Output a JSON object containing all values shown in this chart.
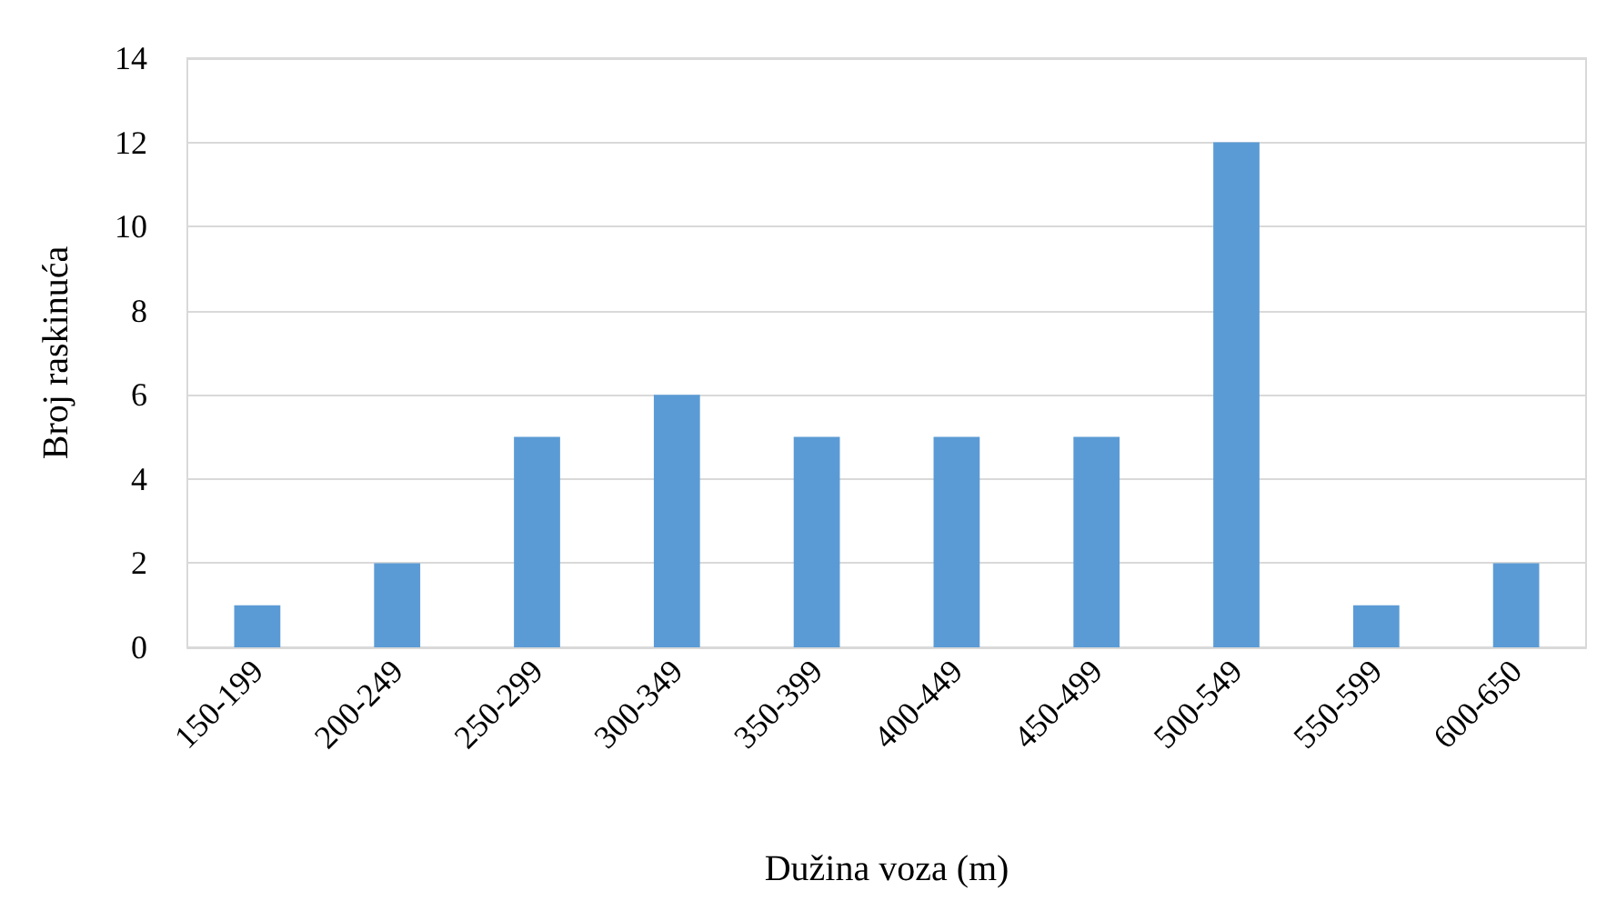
{
  "chart_data": {
    "type": "bar",
    "xlabel": "Dužina voza (m)",
    "ylabel": "Broj raskinuća",
    "categories": [
      "150-199",
      "200-249",
      "250-299",
      "300-349",
      "350-399",
      "400-449",
      "450-499",
      "500-549",
      "550-599",
      "600-650"
    ],
    "values": [
      1,
      2,
      5,
      6,
      5,
      5,
      5,
      12,
      1,
      2
    ],
    "color": "#5b9bd5",
    "ylim": [
      0,
      14
    ],
    "yticks": [
      0,
      2,
      4,
      6,
      8,
      10,
      12,
      14
    ],
    "grid": "y"
  }
}
